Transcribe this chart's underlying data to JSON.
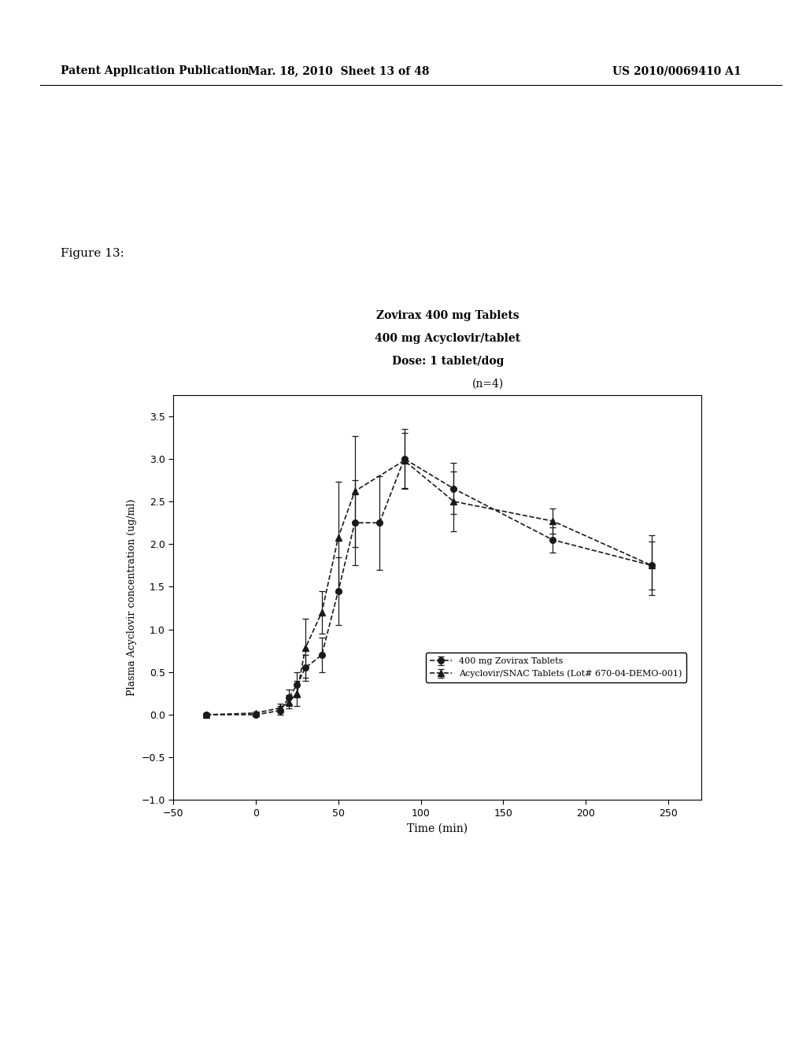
{
  "title_lines": [
    "Zovirax 400 mg Tablets",
    "400 mg Acyclovir/tablet",
    "Dose: 1 tablet/dog",
    "(n=4)"
  ],
  "xlabel": "Time (min)",
  "ylabel": "Plasma Acyclovir concentration (ug/ml)",
  "xlim": [
    -50,
    270
  ],
  "ylim": [
    -1.0,
    3.75
  ],
  "xticks": [
    -50,
    0,
    50,
    100,
    150,
    200,
    250
  ],
  "yticks": [
    -1.0,
    -0.5,
    0.0,
    0.5,
    1.0,
    1.5,
    2.0,
    2.5,
    3.0,
    3.5
  ],
  "series1_label": "400 mg Zovirax Tablets",
  "series1_x": [
    -30,
    0,
    15,
    20,
    25,
    30,
    40,
    50,
    60,
    75,
    90,
    120,
    180,
    240
  ],
  "series1_y": [
    0.0,
    0.0,
    0.05,
    0.2,
    0.35,
    0.55,
    0.7,
    1.45,
    2.25,
    2.25,
    3.0,
    2.65,
    2.05,
    1.75
  ],
  "series1_yerr": [
    0.02,
    0.02,
    0.05,
    0.1,
    0.15,
    0.15,
    0.2,
    0.4,
    0.5,
    0.55,
    0.35,
    0.3,
    0.15,
    0.35
  ],
  "series1_color": "#1a1a1a",
  "series1_marker": "o",
  "series1_linestyle": "--",
  "series2_label": "Acyclovir/SNAC Tablets (Lot# 670-04-DEMO-001)",
  "series2_x": [
    -30,
    0,
    15,
    20,
    25,
    30,
    40,
    50,
    60,
    90,
    120,
    180,
    240
  ],
  "series2_y": [
    0.0,
    0.02,
    0.08,
    0.15,
    0.25,
    0.78,
    1.2,
    2.08,
    2.62,
    2.98,
    2.5,
    2.27,
    1.75
  ],
  "series2_yerr": [
    0.02,
    0.02,
    0.05,
    0.08,
    0.15,
    0.35,
    0.25,
    0.65,
    0.65,
    0.32,
    0.35,
    0.15,
    0.28
  ],
  "series2_color": "#1a1a1a",
  "series2_marker": "^",
  "series2_linestyle": "--",
  "figure_label": "Figure 13:",
  "header_left": "Patent Application Publication",
  "header_mid": "Mar. 18, 2010  Sheet 13 of 48",
  "header_right": "US 2010/0069410 A1",
  "background_color": "#ffffff"
}
